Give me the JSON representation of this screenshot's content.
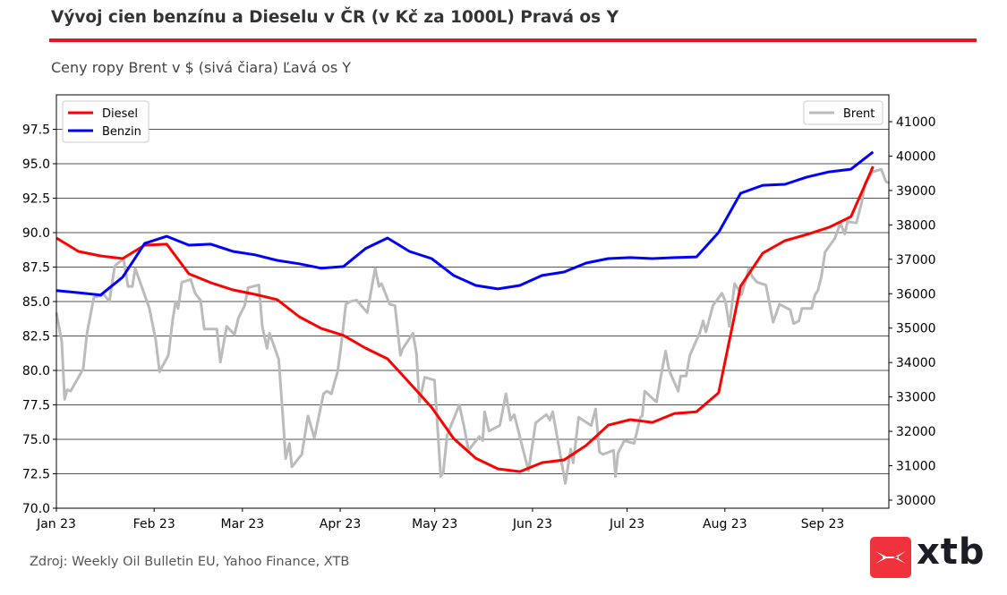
{
  "header": {
    "title": "Vývoj cien benzínu a Dieselu v ČR (v Kč za 1000L) Pravá os Y",
    "subtitle": "Ceny ropy Brent v $ (sivá čiara) Ľavá os Y"
  },
  "footer": {
    "source": "Zdroj: Weekly Oil Bulletin EU, Yahoo Finance, XTB",
    "logo_text": "xtb"
  },
  "chart_data": {
    "type": "line",
    "title": "Vývoj cien benzínu a Dieselu v ČR (v Kč za 1000L) Pravá os Y",
    "x_unit": "days since 2023-01-01",
    "xlim": [
      0,
      264
    ],
    "x_ticks": [
      {
        "day": 0,
        "label": "Jan 23"
      },
      {
        "day": 31,
        "label": "Feb 23"
      },
      {
        "day": 59,
        "label": "Mar 23"
      },
      {
        "day": 90,
        "label": "Apr 23"
      },
      {
        "day": 120,
        "label": "May 23"
      },
      {
        "day": 151,
        "label": "Jun 23"
      },
      {
        "day": 181,
        "label": "Jul 23"
      },
      {
        "day": 212,
        "label": "Aug 23"
      },
      {
        "day": 243,
        "label": "Sep 23"
      }
    ],
    "left_axis": {
      "label": "Brent ($)",
      "ylim": [
        70,
        100
      ],
      "ticks": [
        "70.0",
        "72.5",
        "75.0",
        "77.5",
        "80.0",
        "82.5",
        "85.0",
        "87.5",
        "90.0",
        "92.5",
        "95.0",
        "97.5"
      ],
      "grid": true
    },
    "right_axis": {
      "label": "Kč za 1000L",
      "ylim": [
        29766,
        41780
      ],
      "ticks": [
        "30000",
        "31000",
        "32000",
        "33000",
        "34000",
        "35000",
        "36000",
        "37000",
        "38000",
        "39000",
        "40000",
        "41000"
      ]
    },
    "legend_left": [
      "Diesel",
      "Benzin"
    ],
    "legend_right": [
      "Brent"
    ],
    "series": [
      {
        "name": "Diesel",
        "axis": "right",
        "color": "#ff0000",
        "start_day": 0,
        "step_days": 7,
        "values": [
          37620,
          37230,
          37100,
          37020,
          37410,
          37440,
          36580,
          36320,
          36110,
          35980,
          35830,
          35330,
          34990,
          34790,
          34420,
          34110,
          33410,
          32700,
          31790,
          31220,
          30910,
          30830,
          31090,
          31170,
          31590,
          32180,
          32340,
          32260,
          32520,
          32570,
          33120,
          36220,
          37180,
          37540,
          37720,
          37930,
          38240,
          39700
        ]
      },
      {
        "name": "Benzin",
        "axis": "right",
        "color": "#0000ff",
        "start_day": 0,
        "step_days": 7,
        "values": [
          36090,
          36030,
          35960,
          36480,
          37460,
          37670,
          37410,
          37440,
          37230,
          37130,
          36970,
          36870,
          36740,
          36790,
          37310,
          37620,
          37230,
          37020,
          36530,
          36240,
          36140,
          36240,
          36530,
          36630,
          36890,
          37020,
          37050,
          37020,
          37050,
          37070,
          37780,
          38920,
          39150,
          39180,
          39390,
          39540,
          39620,
          40120
        ]
      },
      {
        "name": "Brent",
        "axis": "left",
        "color": "#bbbbbb",
        "points": [
          [
            0,
            84.2
          ],
          [
            1.7,
            82.1
          ],
          [
            2.6,
            77.9
          ],
          [
            3.4,
            78.6
          ],
          [
            4.5,
            78.5
          ],
          [
            8.5,
            80.1
          ],
          [
            9.7,
            82.7
          ],
          [
            11.9,
            85.3
          ],
          [
            15.1,
            85.5
          ],
          [
            16.8,
            85.0
          ],
          [
            18.5,
            87.6
          ],
          [
            21.3,
            88.1
          ],
          [
            22.7,
            86.1
          ],
          [
            24.1,
            86.1
          ],
          [
            25,
            87.4
          ],
          [
            29.5,
            84.5
          ],
          [
            31.5,
            82.2
          ],
          [
            32.7,
            79.9
          ],
          [
            35.5,
            81.1
          ],
          [
            36.9,
            83.7
          ],
          [
            37.8,
            85.0
          ],
          [
            38.6,
            84.5
          ],
          [
            39.8,
            86.4
          ],
          [
            42.6,
            86.6
          ],
          [
            44,
            85.6
          ],
          [
            45.7,
            85.1
          ],
          [
            46.9,
            83.0
          ],
          [
            50.9,
            83.0
          ],
          [
            52,
            80.6
          ],
          [
            54,
            83.2
          ],
          [
            56.5,
            82.6
          ],
          [
            57.7,
            83.8
          ],
          [
            59.7,
            84.7
          ],
          [
            60.8,
            86.0
          ],
          [
            64.2,
            86.2
          ],
          [
            65.3,
            83.2
          ],
          [
            66.8,
            81.6
          ],
          [
            67.6,
            82.7
          ],
          [
            70.5,
            80.8
          ],
          [
            71.9,
            76.4
          ],
          [
            72.7,
            73.6
          ],
          [
            73.9,
            74.7
          ],
          [
            74.7,
            73.0
          ],
          [
            77.8,
            73.9
          ],
          [
            79.8,
            76.7
          ],
          [
            81.8,
            75.1
          ],
          [
            84.7,
            78.3
          ],
          [
            85.8,
            78.5
          ],
          [
            87.2,
            78.3
          ],
          [
            88.4,
            79.3
          ],
          [
            89.2,
            79.9
          ],
          [
            90.3,
            81.8
          ],
          [
            91.8,
            84.8
          ],
          [
            93.2,
            85.0
          ],
          [
            95.2,
            85.1
          ],
          [
            98.6,
            84.2
          ],
          [
            101.1,
            87.4
          ],
          [
            102.3,
            86.1
          ],
          [
            103.1,
            86.3
          ],
          [
            105.7,
            84.8
          ],
          [
            107.4,
            84.7
          ],
          [
            109.1,
            81.1
          ],
          [
            109.9,
            81.6
          ],
          [
            113.1,
            82.7
          ],
          [
            114.2,
            81.2
          ],
          [
            115.1,
            77.7
          ],
          [
            116.8,
            79.5
          ],
          [
            119.9,
            79.3
          ],
          [
            121.9,
            72.3
          ],
          [
            122.7,
            72.6
          ],
          [
            123.9,
            75.3
          ],
          [
            127.8,
            77.5
          ],
          [
            129.3,
            75.9
          ],
          [
            130.7,
            74.2
          ],
          [
            134.1,
            75.2
          ],
          [
            135.2,
            74.9
          ],
          [
            135.8,
            77.0
          ],
          [
            137.2,
            75.6
          ],
          [
            140.6,
            76.0
          ],
          [
            142.6,
            78.3
          ],
          [
            144,
            76.4
          ],
          [
            145.2,
            76.8
          ],
          [
            149.7,
            72.7
          ],
          [
            152,
            76.2
          ],
          [
            155.4,
            76.8
          ],
          [
            156.5,
            76.4
          ],
          [
            157.4,
            77.0
          ],
          [
            161.4,
            71.8
          ],
          [
            163.1,
            74.3
          ],
          [
            163.9,
            73.3
          ],
          [
            165.6,
            76.6
          ],
          [
            169.6,
            76.0
          ],
          [
            171,
            77.2
          ],
          [
            172.2,
            74.1
          ],
          [
            173.3,
            73.9
          ],
          [
            176.7,
            74.2
          ],
          [
            177.3,
            72.3
          ],
          [
            178.1,
            74.0
          ],
          [
            180.1,
            74.9
          ],
          [
            183.2,
            74.7
          ],
          [
            185.2,
            76.6
          ],
          [
            185.8,
            76.7
          ],
          [
            186.6,
            78.5
          ],
          [
            190.3,
            77.7
          ],
          [
            191.5,
            79.3
          ],
          [
            193.2,
            81.4
          ],
          [
            194.3,
            80.0
          ],
          [
            197.2,
            78.5
          ],
          [
            198,
            79.6
          ],
          [
            199.7,
            79.6
          ],
          [
            200.9,
            81.1
          ],
          [
            204,
            82.7
          ],
          [
            205.1,
            83.6
          ],
          [
            206,
            82.8
          ],
          [
            208.2,
            84.7
          ],
          [
            211.1,
            85.6
          ],
          [
            212.2,
            85.0
          ],
          [
            213.4,
            83.2
          ],
          [
            215.1,
            86.3
          ],
          [
            217.3,
            85.5
          ],
          [
            219.6,
            87.4
          ],
          [
            220.7,
            86.8
          ],
          [
            222.2,
            86.4
          ],
          [
            225,
            86.2
          ],
          [
            227.3,
            83.5
          ],
          [
            229.3,
            84.8
          ],
          [
            232.7,
            84.4
          ],
          [
            233.8,
            83.4
          ],
          [
            235.5,
            83.6
          ],
          [
            236.4,
            84.5
          ],
          [
            239.5,
            84.5
          ],
          [
            240.6,
            85.5
          ],
          [
            241.5,
            85.8
          ],
          [
            242.6,
            86.8
          ],
          [
            243.8,
            88.6
          ],
          [
            246.9,
            89.6
          ],
          [
            248.6,
            90.7
          ],
          [
            250,
            89.9
          ],
          [
            250.9,
            90.8
          ],
          [
            253.7,
            90.7
          ],
          [
            255.4,
            92.2
          ],
          [
            256.5,
            93.6
          ],
          [
            258.8,
            94.4
          ],
          [
            260.2,
            94.5
          ],
          [
            261.6,
            94.6
          ],
          [
            263.1,
            93.7
          ],
          [
            264.2,
            93.6
          ]
        ]
      }
    ]
  }
}
